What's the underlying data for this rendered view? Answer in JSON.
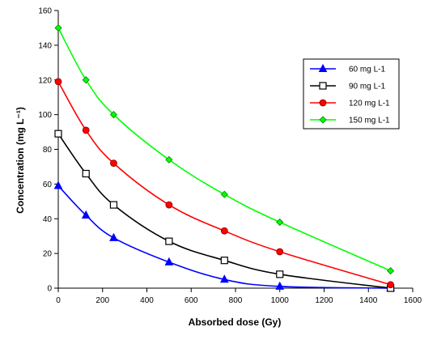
{
  "chart_data": {
    "type": "line",
    "xlabel": "Absorbed dose (Gy)",
    "ylabel": "Concentration (mg L⁻¹)",
    "xlim": [
      0,
      1600
    ],
    "ylim": [
      0,
      160
    ],
    "xticks": [
      0,
      200,
      400,
      600,
      800,
      1000,
      1200,
      1400,
      1600
    ],
    "yticks": [
      0,
      20,
      40,
      60,
      80,
      100,
      120,
      140,
      160
    ],
    "grid": false,
    "legend_position": "top-right",
    "x": [
      0,
      125,
      250,
      500,
      750,
      1000,
      1500
    ],
    "series": [
      {
        "name": "60 mg L-1",
        "color": "#0000ff",
        "marker": "triangle",
        "values": [
          59,
          42,
          29,
          15,
          5,
          1,
          0
        ]
      },
      {
        "name": "90 mg L-1",
        "color": "#000000",
        "marker": "square",
        "values": [
          89,
          66,
          48,
          27,
          16,
          8,
          0
        ]
      },
      {
        "name": "120 mg L-1",
        "color": "#ff0000",
        "marker": "circle",
        "values": [
          119,
          91,
          72,
          48,
          33,
          21,
          2
        ]
      },
      {
        "name": "150 mg L-1",
        "color": "#00ff00",
        "marker": "diamond",
        "values": [
          150,
          120,
          100,
          74,
          54,
          38,
          10
        ]
      }
    ]
  }
}
